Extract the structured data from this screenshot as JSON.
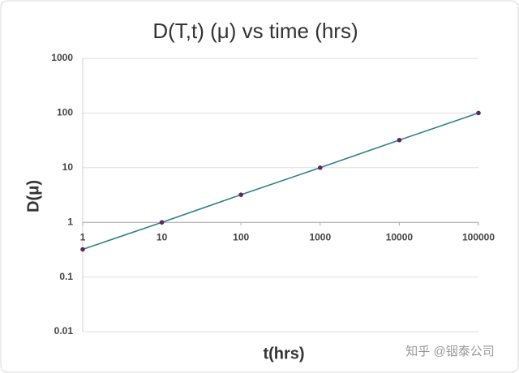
{
  "chart_data": {
    "type": "line",
    "title": "D(T,t) (μ) vs time (hrs)",
    "x_label": "t(hrs)",
    "y_label": "D(μ)",
    "x": [
      1,
      10,
      100,
      1000,
      10000,
      100000
    ],
    "series": [
      {
        "name": "D",
        "color": "#2f7f8e",
        "marker_color": "#5a2a5e",
        "values": [
          0.32,
          1.0,
          3.2,
          10,
          32,
          100
        ]
      }
    ],
    "xlim": [
      1,
      100000
    ],
    "xticks": [
      1,
      10,
      100,
      1000,
      10000,
      100000
    ],
    "ylim": [
      0.01,
      1000
    ],
    "yticks": [
      0.01,
      0.1,
      1,
      10,
      100,
      1000
    ],
    "x_log": true,
    "y_log": true,
    "grid": true,
    "x_axis_position": 1,
    "watermark": "知乎 @铟泰公司"
  }
}
